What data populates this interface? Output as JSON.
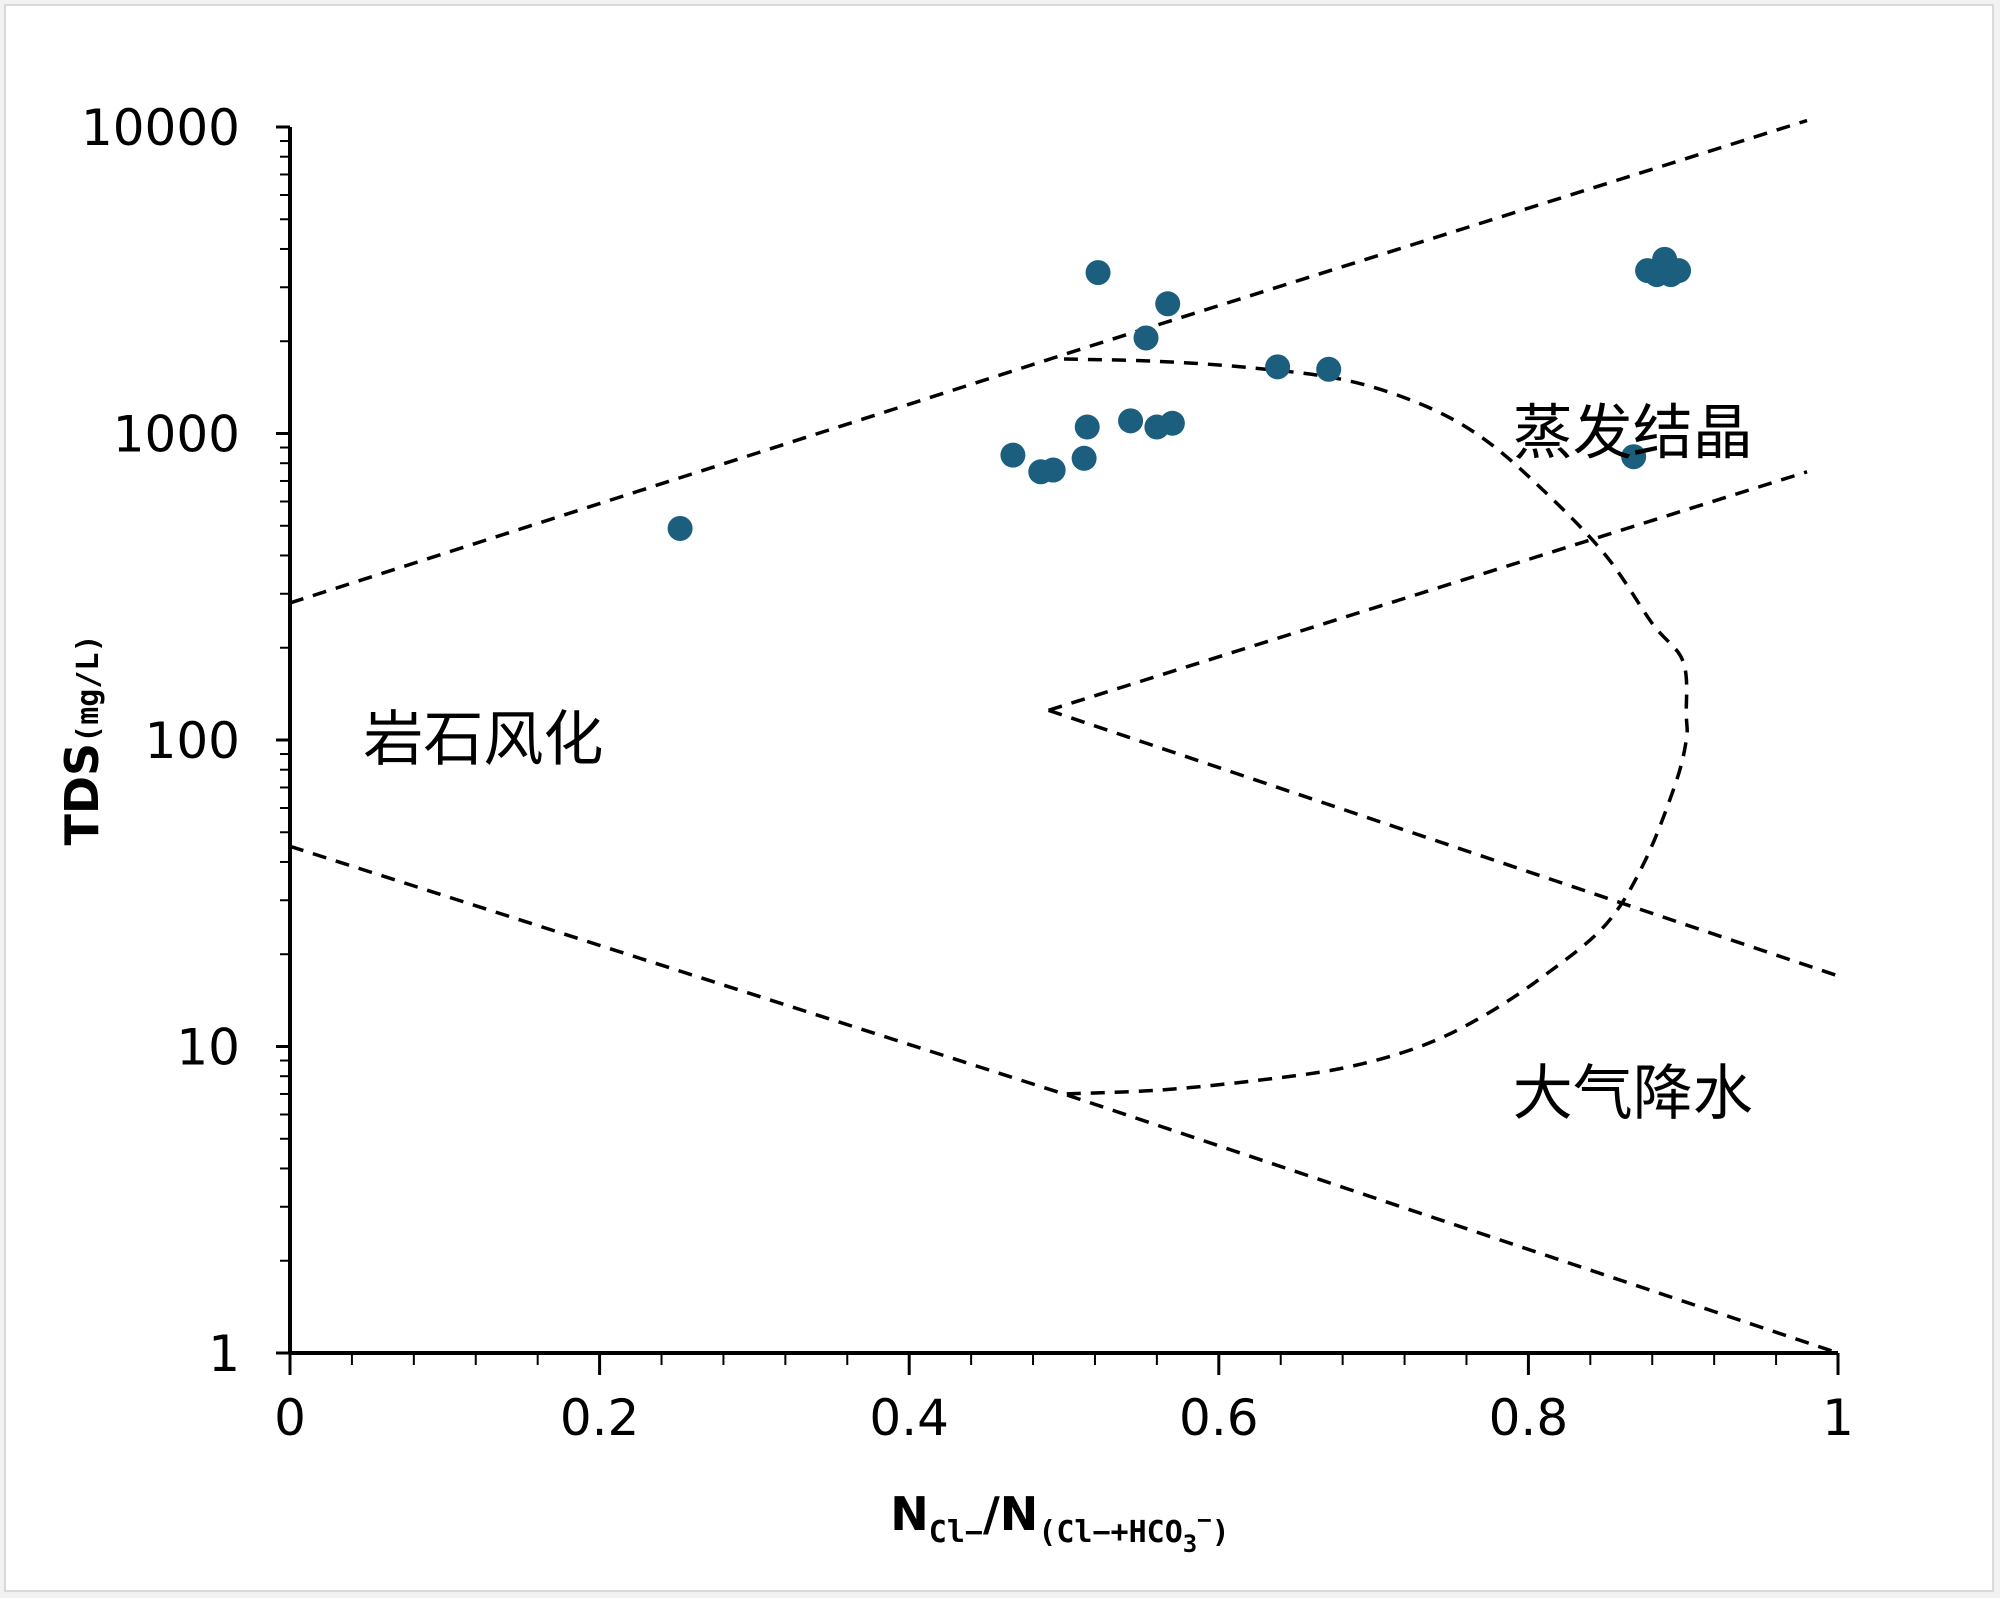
{
  "chart_data": {
    "type": "scatter",
    "title": "",
    "xlabel": {
      "main": "N",
      "sub1": "Cl−",
      "sep": "/N",
      "sub2": "(Cl−+HCO",
      "sub3": "3",
      "sup": "−",
      "close": ")"
    },
    "ylabel": {
      "main": "TDS",
      "unit": "(mg/L)"
    },
    "xlim": [
      0,
      1
    ],
    "ylim": [
      1,
      10000
    ],
    "yscale": "log",
    "grid": false,
    "xticks": [
      {
        "value": 0,
        "label": "0"
      },
      {
        "value": 0.2,
        "label": "0.2"
      },
      {
        "value": 0.4,
        "label": "0.4"
      },
      {
        "value": 0.6,
        "label": "0.6"
      },
      {
        "value": 0.8,
        "label": "0.8"
      },
      {
        "value": 1,
        "label": "1"
      }
    ],
    "yticks": [
      {
        "value": 1,
        "label": "1"
      },
      {
        "value": 10,
        "label": "10"
      },
      {
        "value": 100,
        "label": "100"
      },
      {
        "value": 1000,
        "label": "1000"
      },
      {
        "value": 10000,
        "label": "10000"
      }
    ],
    "point_color": "#1b5e7d",
    "line_color": "#000000",
    "series": [
      {
        "name": "samples",
        "points": [
          [
            0.252,
            490
          ],
          [
            0.467,
            850
          ],
          [
            0.485,
            750
          ],
          [
            0.493,
            760
          ],
          [
            0.513,
            830
          ],
          [
            0.515,
            1050
          ],
          [
            0.522,
            3350
          ],
          [
            0.543,
            1100
          ],
          [
            0.553,
            2050
          ],
          [
            0.56,
            1050
          ],
          [
            0.567,
            2650
          ],
          [
            0.57,
            1080
          ],
          [
            0.638,
            1650
          ],
          [
            0.671,
            1620
          ],
          [
            0.868,
            840
          ],
          [
            0.877,
            3400
          ],
          [
            0.883,
            3300
          ],
          [
            0.888,
            3700
          ],
          [
            0.892,
            3300
          ],
          [
            0.897,
            3400
          ]
        ]
      }
    ],
    "boundaries": [
      {
        "name": "upper-line",
        "points": [
          [
            0,
            280
          ],
          [
            0.52,
            1950
          ],
          [
            0.98,
            10500
          ]
        ]
      },
      {
        "name": "lower-line",
        "points": [
          [
            0,
            45
          ],
          [
            0.5,
            7
          ],
          [
            1,
            1
          ]
        ]
      },
      {
        "name": "inner-upper-line",
        "points": [
          [
            0.49,
            125
          ],
          [
            0.98,
            750
          ]
        ]
      },
      {
        "name": "inner-lower-line",
        "points": [
          [
            0.49,
            125
          ],
          [
            1,
            17
          ]
        ]
      },
      {
        "name": "envelope-curve",
        "points": [
          [
            0.5,
            1750
          ],
          [
            0.56,
            1720
          ],
          [
            0.62,
            1640
          ],
          [
            0.68,
            1500
          ],
          [
            0.73,
            1250
          ],
          [
            0.77,
            970
          ],
          [
            0.81,
            650
          ],
          [
            0.85,
            400
          ],
          [
            0.88,
            240
          ],
          [
            0.9,
            180
          ],
          [
            0.902,
            120
          ],
          [
            0.902,
            100
          ],
          [
            0.895,
            72
          ],
          [
            0.875,
            40
          ],
          [
            0.85,
            25
          ],
          [
            0.81,
            17
          ],
          [
            0.77,
            12.5
          ],
          [
            0.73,
            10
          ],
          [
            0.68,
            8.5
          ],
          [
            0.62,
            7.7
          ],
          [
            0.56,
            7.2
          ],
          [
            0.5,
            7
          ]
        ]
      }
    ],
    "annotations": [
      {
        "text": "蒸发结晶",
        "x": 0.87,
        "y": 1000
      },
      {
        "text": "岩石风化",
        "x": 0.05,
        "y": 100
      },
      {
        "text": "大气降水",
        "x": 0.87,
        "y": 7
      }
    ]
  }
}
